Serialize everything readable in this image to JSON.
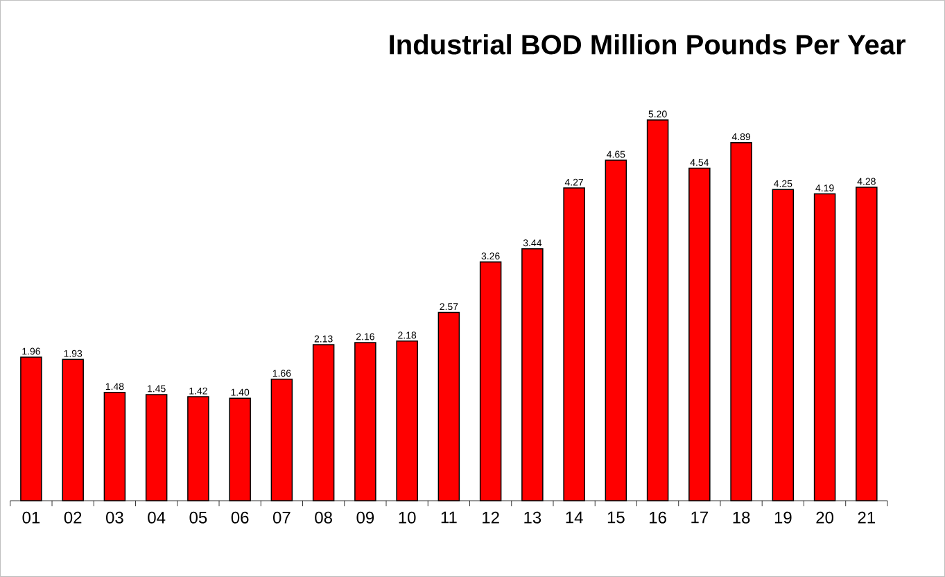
{
  "chart_data": {
    "type": "bar",
    "title": "Industrial BOD Million Pounds Per Year",
    "categories": [
      "01",
      "02",
      "03",
      "04",
      "05",
      "06",
      "07",
      "08",
      "09",
      "10",
      "11",
      "12",
      "13",
      "14",
      "15",
      "16",
      "17",
      "18",
      "19",
      "20",
      "21"
    ],
    "values": [
      1.96,
      1.93,
      1.48,
      1.45,
      1.42,
      1.4,
      1.66,
      2.13,
      2.16,
      2.18,
      2.57,
      3.26,
      3.44,
      4.27,
      4.65,
      5.2,
      4.54,
      4.89,
      4.25,
      4.19,
      4.28
    ],
    "value_labels": [
      "1.96",
      "1.93",
      "1.48",
      "1.45",
      "1.42",
      "1.40",
      "1.66",
      "2.13",
      "2.16",
      "2.18",
      "2.57",
      "3.26",
      "3.44",
      "4.27",
      "4.65",
      "5.20",
      "4.54",
      "4.89",
      "4.25",
      "4.19",
      "4.28"
    ],
    "color": "#ff0000"
  }
}
